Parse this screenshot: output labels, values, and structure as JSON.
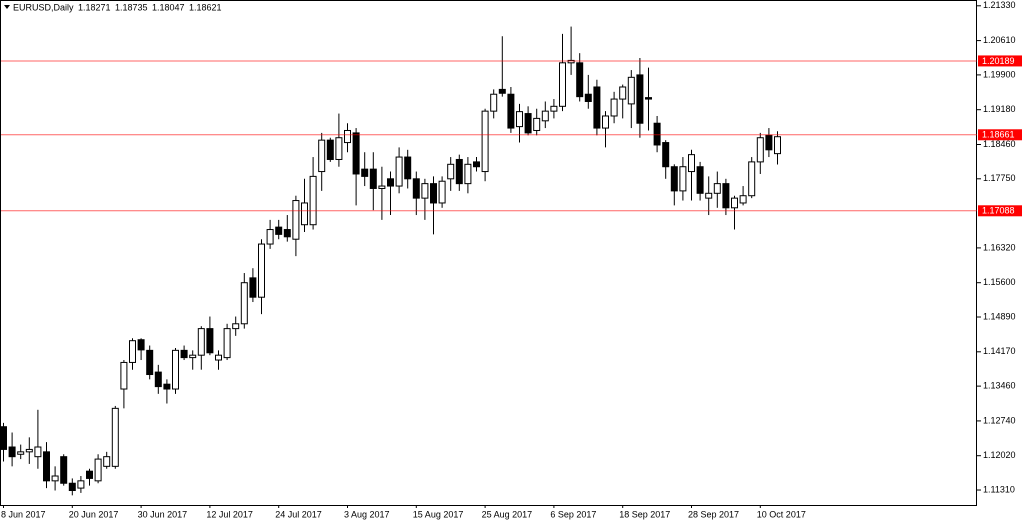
{
  "chart_data": {
    "type": "candlestick",
    "title": "EURUSD,Daily",
    "categories": [
      "8 Jun 2017",
      null,
      null,
      null,
      null,
      null,
      null,
      null,
      "20 Jun 2017",
      null,
      null,
      null,
      null,
      null,
      null,
      null,
      "30 Jun 2017",
      null,
      null,
      null,
      null,
      null,
      null,
      null,
      "12 Jul 2017",
      null,
      null,
      null,
      null,
      null,
      null,
      null,
      "24 Jul 2017",
      null,
      null,
      null,
      null,
      null,
      null,
      null,
      "3 Aug 2017",
      null,
      null,
      null,
      null,
      null,
      null,
      null,
      "15 Aug 2017",
      null,
      null,
      null,
      null,
      null,
      null,
      null,
      "25 Aug 2017",
      null,
      null,
      null,
      null,
      null,
      null,
      null,
      "6 Sep 2017",
      null,
      null,
      null,
      null,
      null,
      null,
      null,
      "18 Sep 2017",
      null,
      null,
      null,
      null,
      null,
      null,
      null,
      "28 Sep 2017",
      null,
      null,
      null,
      null,
      null,
      null,
      null,
      "10 Oct 2017",
      null,
      null
    ],
    "open": [
      1.1262,
      1.122,
      1.1205,
      1.121,
      1.12,
      1.121,
      1.115,
      1.12,
      1.1145,
      1.1135,
      1.117,
      1.115,
      1.118,
      1.118,
      1.134,
      1.1395,
      1.1442,
      1.142,
      1.1375,
      1.135,
      1.134,
      1.142,
      1.1405,
      1.141,
      1.1465,
      1.14,
      1.1405,
      1.1465,
      1.1475,
      1.157,
      1.153,
      1.164,
      1.1675,
      1.167,
      1.165,
      1.168,
      1.168,
      1.179,
      1.1855,
      1.1815,
      1.185,
      1.187,
      1.1795,
      1.1795,
      1.1755,
      1.1775,
      1.176,
      1.182,
      1.1775,
      1.1735,
      1.1765,
      1.1725,
      1.1775,
      1.1815,
      1.1765,
      1.181,
      1.179,
      1.1915,
      1.196,
      1.195,
      1.1883,
      1.191,
      1.1875,
      1.1895,
      1.1915,
      1.1925,
      1.2015,
      1.2015,
      1.195,
      1.1965,
      1.188,
      1.1905,
      1.194,
      1.193,
      1.199,
      1.1943,
      1.189,
      1.185,
      1.18,
      1.175,
      1.179,
      1.18,
      1.1735,
      1.1745,
      1.1765,
      1.1715,
      1.1725,
      1.174,
      1.181,
      1.1865,
      1.18271
    ],
    "high": [
      1.127,
      1.125,
      1.1225,
      1.124,
      1.1297,
      1.123,
      1.118,
      1.1205,
      1.1155,
      1.116,
      1.1175,
      1.1205,
      1.121,
      1.1305,
      1.14,
      1.1445,
      1.1445,
      1.143,
      1.139,
      1.136,
      1.1425,
      1.143,
      1.142,
      1.147,
      1.149,
      1.142,
      1.1475,
      1.149,
      1.158,
      1.159,
      1.165,
      1.169,
      1.169,
      1.17,
      1.174,
      1.1775,
      1.182,
      1.187,
      1.186,
      1.191,
      1.189,
      1.188,
      1.183,
      1.183,
      1.18,
      1.179,
      1.184,
      1.1835,
      1.179,
      1.1775,
      1.178,
      1.178,
      1.182,
      1.1825,
      1.182,
      1.182,
      1.192,
      1.196,
      1.207,
      1.1965,
      1.193,
      1.1925,
      1.192,
      1.1935,
      1.194,
      1.2075,
      1.209,
      1.2035,
      1.199,
      1.198,
      1.1915,
      1.1955,
      1.197,
      1.2,
      1.2025,
      1.2005,
      1.1905,
      1.1855,
      1.1805,
      1.182,
      1.1835,
      1.181,
      1.178,
      1.179,
      1.1775,
      1.174,
      1.176,
      1.182,
      1.187,
      1.188,
      1.18735
    ],
    "low": [
      1.119,
      1.118,
      1.1195,
      1.1185,
      1.1175,
      1.1135,
      1.113,
      1.114,
      1.112,
      1.1125,
      1.114,
      1.1145,
      1.1175,
      1.1175,
      1.13,
      1.138,
      1.14,
      1.136,
      1.133,
      1.131,
      1.133,
      1.14,
      1.138,
      1.138,
      1.141,
      1.138,
      1.14,
      1.145,
      1.1465,
      1.152,
      1.1495,
      1.163,
      1.165,
      1.1645,
      1.1615,
      1.1665,
      1.167,
      1.175,
      1.181,
      1.18,
      1.183,
      1.172,
      1.176,
      1.171,
      1.169,
      1.17,
      1.1745,
      1.1755,
      1.17,
      1.169,
      1.166,
      1.1715,
      1.175,
      1.175,
      1.1745,
      1.179,
      1.177,
      1.19,
      1.1945,
      1.187,
      1.185,
      1.1865,
      1.1865,
      1.188,
      1.19,
      1.1915,
      1.199,
      1.1935,
      1.192,
      1.1865,
      1.184,
      1.189,
      1.19,
      1.188,
      1.186,
      1.1875,
      1.183,
      1.1775,
      1.172,
      1.173,
      1.173,
      1.173,
      1.17,
      1.1715,
      1.17,
      1.167,
      1.172,
      1.1735,
      1.1785,
      1.182,
      1.18047
    ],
    "close": [
      1.1215,
      1.12,
      1.121,
      1.1215,
      1.122,
      1.115,
      1.116,
      1.1145,
      1.113,
      1.115,
      1.1155,
      1.1195,
      1.12,
      1.13,
      1.1395,
      1.144,
      1.1421,
      1.137,
      1.1345,
      1.134,
      1.142,
      1.1405,
      1.141,
      1.1465,
      1.1415,
      1.141,
      1.1465,
      1.1475,
      1.156,
      1.153,
      1.164,
      1.167,
      1.166,
      1.1655,
      1.173,
      1.1725,
      1.178,
      1.1855,
      1.1815,
      1.186,
      1.1875,
      1.1785,
      1.178,
      1.1755,
      1.176,
      1.176,
      1.182,
      1.1775,
      1.1735,
      1.1765,
      1.1725,
      1.177,
      1.1805,
      1.1765,
      1.1805,
      1.18,
      1.1915,
      1.195,
      1.1952,
      1.188,
      1.1914,
      1.187,
      1.19,
      1.1915,
      1.1925,
      1.2015,
      1.202,
      1.1945,
      1.1935,
      1.188,
      1.1905,
      1.194,
      1.1965,
      1.1985,
      1.189,
      1.194,
      1.1845,
      1.18,
      1.175,
      1.18,
      1.1825,
      1.1745,
      1.1745,
      1.1765,
      1.1715,
      1.1735,
      1.174,
      1.181,
      1.186,
      1.1835,
      1.18621
    ],
    "bull_color": "#ffffff",
    "bear_color": "#000000",
    "levels": [
      1.20189,
      1.18661,
      1.17088
    ],
    "level_color": "#ff0000",
    "ylim": [
      1.11,
      1.2145
    ],
    "yticks": [
      {
        "value": 1.2133,
        "label": "1.21330"
      },
      {
        "value": 1.2061,
        "label": "1.20610"
      },
      {
        "value": 1.199,
        "label": "1.19900"
      },
      {
        "value": 1.1918,
        "label": "1.19180"
      },
      {
        "value": 1.1846,
        "label": "1.18460"
      },
      {
        "value": 1.1775,
        "label": "1.17750"
      },
      {
        "value": 1.1632,
        "label": "1.16320"
      },
      {
        "value": 1.156,
        "label": "1.15600"
      },
      {
        "value": 1.1489,
        "label": "1.14890"
      },
      {
        "value": 1.1417,
        "label": "1.14170"
      },
      {
        "value": 1.1346,
        "label": "1.13460"
      },
      {
        "value": 1.1274,
        "label": "1.12740"
      },
      {
        "value": 1.1202,
        "label": "1.12020"
      },
      {
        "value": 1.1131,
        "label": "1.11310"
      }
    ],
    "grid": false
  }
}
